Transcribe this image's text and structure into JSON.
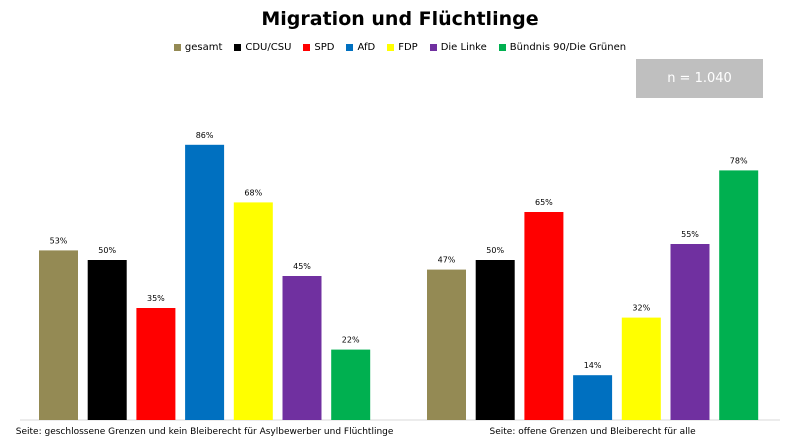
{
  "chart_data": {
    "type": "bar",
    "title": "Migration und Flüchtlinge",
    "note": "n = 1.040",
    "categories": [
      "Seite: geschlossene Grenzen und kein Bleiberecht für Asylbewerber und Flüchtlinge",
      "Seite: offene Grenzen und Bleiberecht für alle"
    ],
    "series": [
      {
        "name": "gesamt",
        "color": "#948a54",
        "values": [
          53,
          47
        ]
      },
      {
        "name": "CDU/CSU",
        "color": "#000000",
        "values": [
          50,
          50
        ]
      },
      {
        "name": "SPD",
        "color": "#ff0000",
        "values": [
          35,
          65
        ]
      },
      {
        "name": "AfD",
        "color": "#0070c0",
        "values": [
          86,
          14
        ]
      },
      {
        "name": "FDP",
        "color": "#ffff00",
        "values": [
          68,
          32
        ]
      },
      {
        "name": "Die Linke",
        "color": "#7030a0",
        "values": [
          45,
          55
        ]
      },
      {
        "name": "Bündnis 90/Die Grünen",
        "color": "#00b050",
        "values": [
          22,
          78
        ]
      }
    ],
    "value_labels": [
      [
        "53%",
        "47%"
      ],
      [
        "50%",
        "50%"
      ],
      [
        "35%",
        "65%"
      ],
      [
        "86%",
        "14%"
      ],
      [
        "68%",
        "32%"
      ],
      [
        "45%",
        "55%"
      ],
      [
        "22%",
        "78%"
      ]
    ],
    "ylim": [
      0,
      100
    ],
    "grid": false,
    "legend_position": "top"
  }
}
